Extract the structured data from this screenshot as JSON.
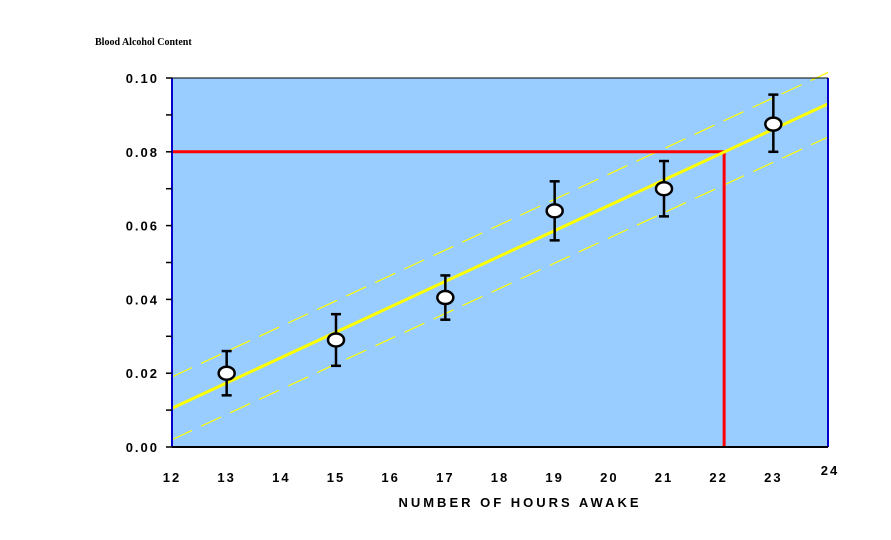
{
  "chart_data": {
    "type": "scatter",
    "title": "Blood Alcohol Content",
    "xlabel": "NUMBER OF HOURS AWAKE",
    "ylabel": "",
    "xlim": [
      12,
      24
    ],
    "ylim": [
      0.0,
      0.1
    ],
    "x_ticks": [
      "12",
      "13",
      "14",
      "15",
      "16",
      "17",
      "18",
      "19",
      "20",
      "21",
      "22",
      "23",
      "24"
    ],
    "y_ticks": [
      "0.00",
      "0.02",
      "0.04",
      "0.06",
      "0.08",
      "0.10"
    ],
    "series": [
      {
        "x": [
          13,
          15,
          17,
          19,
          21,
          23
        ],
        "y": [
          0.02,
          0.029,
          0.0405,
          0.064,
          0.07,
          0.0875
        ],
        "error_low": [
          0.014,
          0.022,
          0.0345,
          0.056,
          0.0625,
          0.08
        ],
        "error_high": [
          0.026,
          0.036,
          0.0465,
          0.072,
          0.0775,
          0.0955
        ]
      }
    ],
    "fit_line": {
      "x": [
        12,
        24
      ],
      "y": [
        0.0105,
        0.093
      ]
    },
    "confidence_band_upper": {
      "x": [
        12,
        24
      ],
      "y": [
        0.019,
        0.1015
      ]
    },
    "confidence_band_lower": {
      "x": [
        12,
        24
      ],
      "y": [
        0.002,
        0.084
      ]
    },
    "reference_lines": {
      "x": 22.1,
      "y": 0.08
    },
    "grid": false,
    "colors": {
      "background": "#000000",
      "plot_area": "#99CCFF",
      "fit_line": "#FFFF00",
      "reference": "#FF0000",
      "marker_fill": "#FFFFFF",
      "marker_edge": "#000000",
      "frame": "#0000CC"
    }
  }
}
